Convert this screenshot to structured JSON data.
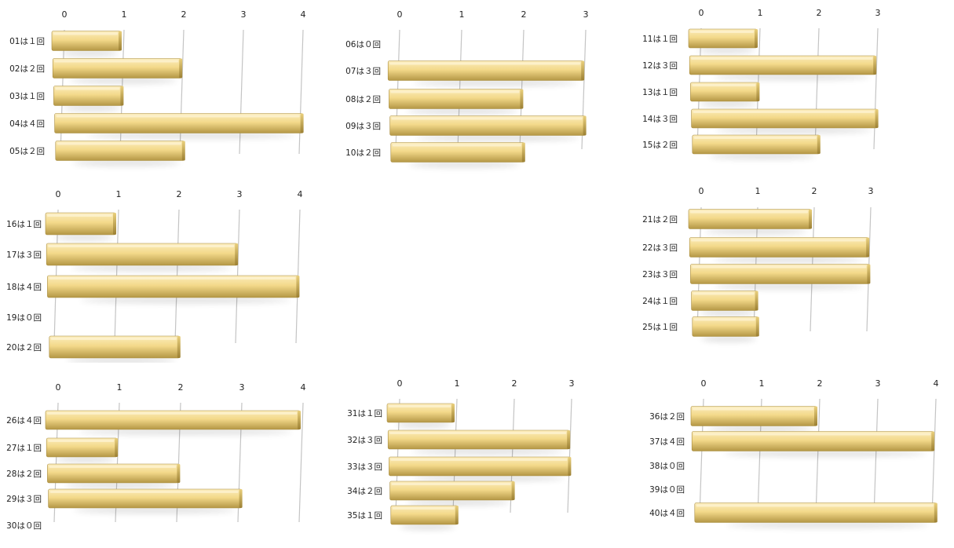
{
  "chart_data": [
    {
      "type": "bar",
      "orientation": "horizontal",
      "categories": [
        "01は１回",
        "02は２回",
        "03は１回",
        "04は４回",
        "05は２回"
      ],
      "values": [
        1,
        2,
        1,
        4,
        2
      ],
      "ticks": [
        0,
        1,
        2,
        3,
        4
      ],
      "grid": true
    },
    {
      "type": "bar",
      "orientation": "horizontal",
      "categories": [
        "06は０回",
        "07は３回",
        "08は２回",
        "09は３回",
        "10は２回"
      ],
      "values": [
        0,
        3,
        2,
        3,
        2
      ],
      "ticks": [
        0,
        1,
        2,
        3
      ],
      "grid": true
    },
    {
      "type": "bar",
      "orientation": "horizontal",
      "categories": [
        "11は１回",
        "12は３回",
        "13は１回",
        "14は３回",
        "15は２回"
      ],
      "values": [
        1,
        3,
        1,
        3,
        2
      ],
      "ticks": [
        0,
        1,
        2,
        3
      ],
      "grid": true
    },
    {
      "type": "bar",
      "orientation": "horizontal",
      "categories": [
        "16は１回",
        "17は３回",
        "18は４回",
        "19は０回",
        "20は２回"
      ],
      "values": [
        1,
        3,
        4,
        0,
        2
      ],
      "ticks": [
        0,
        1,
        2,
        3,
        4
      ],
      "grid": true
    },
    {
      "type": "bar",
      "orientation": "horizontal",
      "categories": [
        "21は２回",
        "22は３回",
        "23は３回",
        "24は１回",
        "25は１回"
      ],
      "values": [
        2,
        3,
        3,
        1,
        1
      ],
      "ticks": [
        0,
        1,
        2,
        3
      ],
      "grid": true
    },
    {
      "type": "bar",
      "orientation": "horizontal",
      "categories": [
        "26は４回",
        "27は１回",
        "28は２回",
        "29は３回",
        "30は０回"
      ],
      "values": [
        4,
        1,
        2,
        3,
        0
      ],
      "ticks": [
        0,
        1,
        2,
        3,
        4
      ],
      "grid": true
    },
    {
      "type": "bar",
      "orientation": "horizontal",
      "categories": [
        "31は１回",
        "32は３回",
        "33は３回",
        "34は２回",
        "35は１回"
      ],
      "values": [
        1,
        3,
        3,
        2,
        1
      ],
      "ticks": [
        0,
        1,
        2,
        3
      ],
      "grid": true
    },
    {
      "type": "bar",
      "orientation": "horizontal",
      "categories": [
        "36は２回",
        "37は４回",
        "38は０回",
        "39は０回",
        "40は４回"
      ],
      "values": [
        2,
        4,
        0,
        0,
        4
      ],
      "ticks": [
        0,
        1,
        2,
        3,
        4
      ],
      "grid": true
    }
  ],
  "colors": {
    "bar": "#f3d98a",
    "bar_dark": "#b49745",
    "bar_light": "#fbecbc",
    "grid": "#c4c4c4"
  }
}
